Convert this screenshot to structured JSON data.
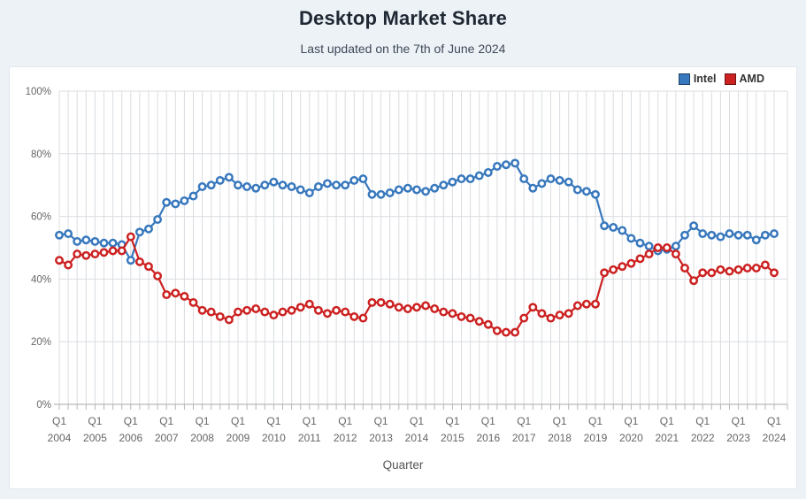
{
  "page": {
    "background": "#edf2f7"
  },
  "header": {
    "title": "Desktop Market Share",
    "subtitle": "Last updated on the 7th of June 2024"
  },
  "chart_data": {
    "type": "line",
    "title": "Desktop Market Share",
    "subtitle": "Last updated on the 7th of June 2024",
    "xlabel": "Quarter",
    "x_tick_quarter": "Q1",
    "x_years": [
      "2004",
      "2005",
      "2006",
      "2007",
      "2008",
      "2009",
      "2010",
      "2011",
      "2012",
      "2013",
      "2014",
      "2015",
      "2016",
      "2017",
      "2018",
      "2019",
      "2020",
      "2021",
      "2022",
      "2023",
      "2024"
    ],
    "points_per_year": 4,
    "x_range": "2004 Q1 to 2024 Q1, quarterly",
    "ylim": [
      0,
      100
    ],
    "ytick_step": 20,
    "ytick_suffix": "%",
    "grid": true,
    "legend_position": "top-right",
    "colors": {
      "intel": "#3878bd",
      "amd": "#cc2121",
      "gridline": "#d9dde1",
      "axis": "#aaaaaa",
      "tick_text": "#666666"
    },
    "series": [
      {
        "name": "Intel",
        "color": "#3878bd",
        "values": [
          54,
          54.5,
          52,
          52.5,
          52,
          51.5,
          51.5,
          51,
          46,
          55,
          56,
          59,
          64.5,
          64,
          65,
          66.5,
          69.5,
          70,
          71.5,
          72.5,
          70,
          69.5,
          69,
          70,
          71,
          70,
          69.5,
          68.5,
          67.5,
          69.5,
          70.5,
          70,
          70,
          71.5,
          72,
          67,
          67,
          67.5,
          68.5,
          69,
          68.5,
          68,
          69,
          70,
          71,
          72,
          72,
          73,
          74,
          76,
          76.5,
          77,
          72,
          69,
          70.5,
          72,
          71.5,
          71,
          68.5,
          68,
          67,
          57,
          56.5,
          55.5,
          53,
          51.5,
          50.5,
          49,
          49.5,
          50.5,
          54,
          57,
          54.5,
          54,
          53.5,
          54.5,
          54,
          54,
          52.5,
          54,
          54.5
        ]
      },
      {
        "name": "AMD",
        "color": "#cc2121",
        "values": [
          46,
          44.5,
          48,
          47.5,
          48,
          48.5,
          49,
          49,
          53.5,
          45.5,
          44,
          41,
          35,
          35.5,
          34.5,
          32.5,
          30,
          29.5,
          28,
          27,
          29.5,
          30,
          30.5,
          29.5,
          28.5,
          29.5,
          30,
          31,
          32,
          30,
          29,
          30,
          29.5,
          28,
          27.5,
          32.5,
          32.5,
          32,
          31,
          30.5,
          31,
          31.5,
          30.5,
          29.5,
          29,
          28,
          27.5,
          26.5,
          25.5,
          23.5,
          23,
          23,
          27.5,
          31,
          29,
          27.5,
          28.5,
          29,
          31.5,
          32,
          32,
          42,
          43,
          44,
          45,
          46.5,
          48,
          50,
          50,
          48,
          43.5,
          39.5,
          42,
          42,
          43,
          42.5,
          43,
          43.5,
          43.5,
          44.5,
          42
        ]
      }
    ]
  }
}
